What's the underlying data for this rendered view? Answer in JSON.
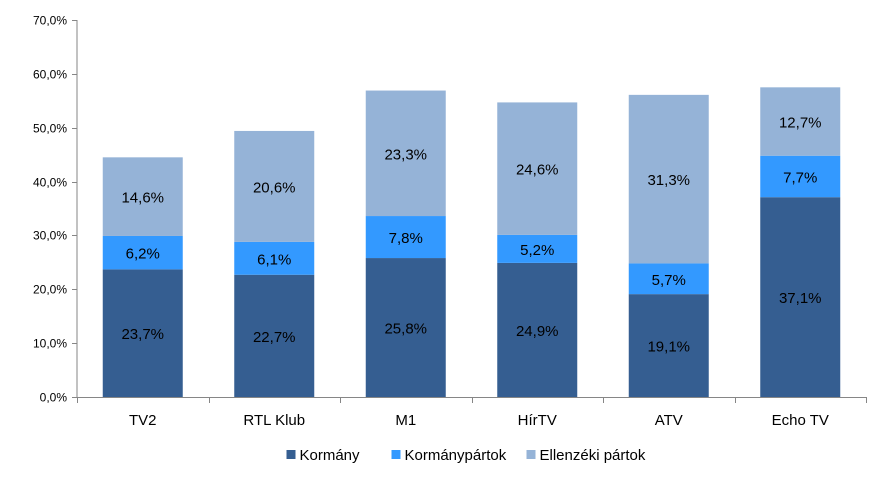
{
  "chart_data": {
    "type": "bar",
    "stacked": true,
    "categories": [
      "TV2",
      "RTL Klub",
      "M1",
      "HírTV",
      "ATV",
      "Echo TV"
    ],
    "series": [
      {
        "name": "Kormány",
        "color": "#355E91",
        "values": [
          23.7,
          22.7,
          25.8,
          24.9,
          19.1,
          37.1
        ],
        "labels": [
          "23,7%",
          "22,7%",
          "25,8%",
          "24,9%",
          "19,1%",
          "37,1%"
        ]
      },
      {
        "name": "Kormánypártok",
        "color": "#3399FF",
        "values": [
          6.2,
          6.1,
          7.8,
          5.2,
          5.7,
          7.7
        ],
        "labels": [
          "6,2%",
          "6,1%",
          "7,8%",
          "5,2%",
          "5,7%",
          "7,7%"
        ]
      },
      {
        "name": "Ellenzéki pártok",
        "color": "#95B3D7",
        "values": [
          14.6,
          20.6,
          23.3,
          24.6,
          31.3,
          12.7
        ],
        "labels": [
          "14,6%",
          "20,6%",
          "23,3%",
          "24,6%",
          "31,3%",
          "12,7%"
        ]
      }
    ],
    "ylim": [
      0,
      70
    ],
    "yticks": [
      0,
      10,
      20,
      30,
      40,
      50,
      60,
      70
    ],
    "ytick_labels": [
      "0,0%",
      "10,0%",
      "20,0%",
      "30,0%",
      "40,0%",
      "50,0%",
      "60,0%",
      "70,0%"
    ],
    "grid": false,
    "legend_position": "bottom"
  }
}
